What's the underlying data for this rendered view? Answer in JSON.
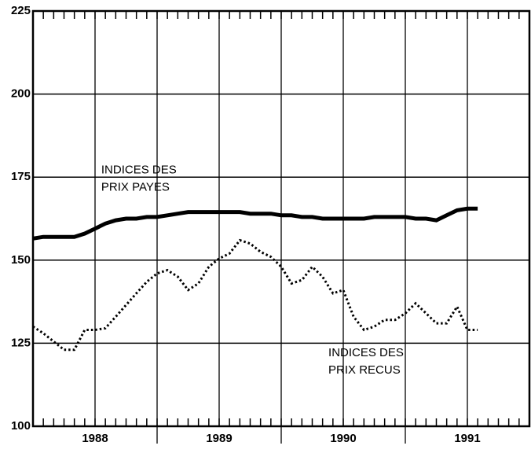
{
  "chart_data": {
    "type": "line",
    "x": [
      1988,
      1988.083,
      1988.167,
      1988.25,
      1988.333,
      1988.417,
      1988.5,
      1988.583,
      1988.667,
      1988.75,
      1988.833,
      1988.917,
      1989,
      1989.083,
      1989.167,
      1989.25,
      1989.333,
      1989.417,
      1989.5,
      1989.583,
      1989.667,
      1989.75,
      1989.833,
      1989.917,
      1990,
      1990.083,
      1990.167,
      1990.25,
      1990.333,
      1990.417,
      1990.5,
      1990.583,
      1990.667,
      1990.75,
      1990.833,
      1990.917,
      1991,
      1991.083,
      1991.167,
      1991.25,
      1991.333,
      1991.417,
      1991.5,
      1991.583
    ],
    "series": [
      {
        "name": "INDICES DES PRIX PAYES",
        "color": "#000000",
        "style": "solid",
        "values": [
          156.5,
          157,
          157,
          157,
          157,
          158,
          159.5,
          161,
          162,
          162.5,
          162.5,
          163,
          163,
          163.5,
          164,
          164.5,
          164.5,
          164.5,
          164.5,
          164.5,
          164.5,
          164,
          164,
          164,
          163.5,
          163.5,
          163,
          163,
          162.5,
          162.5,
          162.5,
          162.5,
          162.5,
          163,
          163,
          163,
          163,
          162.5,
          162.5,
          162,
          163.5,
          165,
          165.5,
          165.5
        ]
      },
      {
        "name": "INDICES DES PRIX RECUS",
        "color": "#000000",
        "style": "dotted",
        "values": [
          130,
          128,
          125.5,
          123,
          123,
          129,
          129,
          129.5,
          133,
          136.5,
          140,
          143.5,
          146,
          147,
          145,
          141,
          143,
          148,
          150.5,
          152,
          156,
          155,
          152.5,
          151,
          148,
          143,
          144,
          148,
          145,
          140,
          141,
          133,
          129,
          130,
          132,
          132,
          134,
          137,
          134,
          131,
          131,
          136,
          129,
          129
        ]
      }
    ],
    "annotations": [
      {
        "lines": [
          "INDICES DES",
          "PRIX PAYES"
        ],
        "x": 1988.55,
        "y": 177
      },
      {
        "lines": [
          "INDICES DES",
          "PRIX RECUS"
        ],
        "x": 1990.38,
        "y": 122
      }
    ],
    "xlim": [
      1988,
      1992
    ],
    "xticks": [
      {
        "value": 1988,
        "label": "1988"
      },
      {
        "value": 1989,
        "label": "1989"
      },
      {
        "value": 1990,
        "label": "1990"
      },
      {
        "value": 1991,
        "label": "1991"
      }
    ],
    "x_gridlines": [
      1988.5,
      1989,
      1989.5,
      1990,
      1990.5,
      1991,
      1991.5
    ],
    "ylim": [
      100,
      225
    ],
    "yticks": [
      100,
      125,
      150,
      175,
      200,
      225
    ],
    "grid": true
  }
}
